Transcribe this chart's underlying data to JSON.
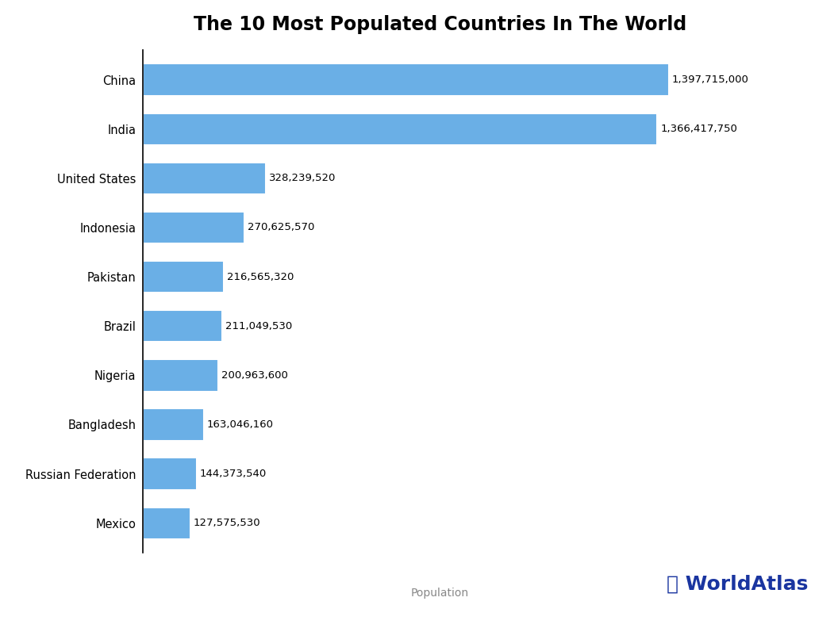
{
  "title": "The 10 Most Populated Countries In The World",
  "xlabel": "Population",
  "countries": [
    "China",
    "India",
    "United States",
    "Indonesia",
    "Pakistan",
    "Brazil",
    "Nigeria",
    "Bangladesh",
    "Russian Federation",
    "Mexico"
  ],
  "populations": [
    1397715000,
    1366417750,
    328239520,
    270625570,
    216565320,
    211049530,
    200963600,
    163046160,
    144373540,
    127575530
  ],
  "labels": [
    "1,397,715,000",
    "1,366,417,750",
    "328,239,520",
    "270,625,570",
    "216,565,320",
    "211,049,530",
    "200,963,600",
    "163,046,160",
    "144,373,540",
    "127,575,530"
  ],
  "bar_color": "#6aafe6",
  "background_color": "#ffffff",
  "title_fontsize": 17,
  "label_fontsize": 9.5,
  "tick_fontsize": 10.5,
  "worldatlas_color": "#1a35a0",
  "worldatlas_text": "WorldAtlas",
  "xlabel_fontsize": 10,
  "xlabel_color": "#888888"
}
